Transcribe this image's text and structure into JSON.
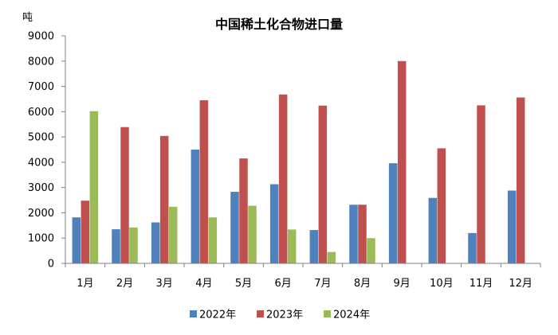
{
  "chart_data": {
    "type": "bar",
    "title": "中国稀土化合物进口量",
    "unit": "吨",
    "ylim": [
      0,
      9000
    ],
    "yticks": [
      "0",
      "1000",
      "2000",
      "3000",
      "4000",
      "5000",
      "6000",
      "7000",
      "8000",
      "9000"
    ],
    "grid": false,
    "legend_position": "bottom",
    "categories": [
      "1月",
      "2月",
      "3月",
      "4月",
      "5月",
      "6月",
      "7月",
      "8月",
      "9月",
      "10月",
      "11月",
      "12月"
    ],
    "series": [
      {
        "name": "2022年",
        "color": "#4F81BD",
        "values": [
          1820,
          1350,
          1620,
          4500,
          2830,
          3130,
          1320,
          2320,
          3960,
          2590,
          1200,
          2880
        ]
      },
      {
        "name": "2023年",
        "color": "#C0504D",
        "values": [
          2480,
          5390,
          5040,
          6450,
          4150,
          6680,
          6240,
          2320,
          8000,
          4550,
          6250,
          6560
        ]
      },
      {
        "name": "2024年",
        "color": "#9BBB59",
        "values": [
          6020,
          1420,
          2240,
          1820,
          2280,
          1340,
          450,
          1000,
          null,
          null,
          null,
          null
        ]
      }
    ]
  }
}
